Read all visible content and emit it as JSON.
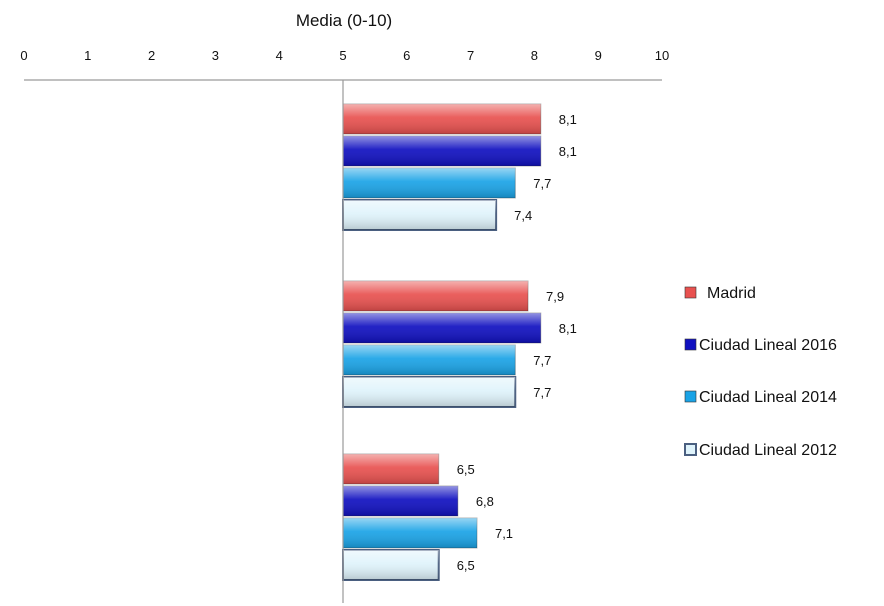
{
  "chart_data": {
    "type": "bar",
    "orientation": "horizontal",
    "x_axis_title": "Media (0-10)",
    "x_axis_position": "top",
    "xlim": [
      0,
      10
    ],
    "x_ticks": [
      0,
      1,
      2,
      3,
      4,
      5,
      6,
      7,
      8,
      9,
      10
    ],
    "baseline": 5,
    "categories": [
      "",
      "",
      ""
    ],
    "legend_position": "right",
    "series": [
      {
        "name": "Madrid",
        "color": "#e8514f",
        "values": [
          8.1,
          7.9,
          6.5
        ],
        "labels": [
          "8,1",
          "7,9",
          "6,5"
        ]
      },
      {
        "name": "Ciudad Lineal 2016",
        "color": "#1010c0",
        "values": [
          8.1,
          8.1,
          6.8
        ],
        "labels": [
          "8,1",
          "8,1",
          "6,8"
        ]
      },
      {
        "name": "Ciudad Lineal 2014",
        "color": "#1aa3e6",
        "values": [
          7.7,
          7.7,
          7.1
        ],
        "labels": [
          "7,7",
          "7,7",
          "7,1"
        ]
      },
      {
        "name": "Ciudad Lineal 2012",
        "color": "#dff3fb",
        "values": [
          7.4,
          7.7,
          6.5
        ],
        "labels": [
          "7,4",
          "7,7",
          "6,5"
        ]
      }
    ]
  }
}
